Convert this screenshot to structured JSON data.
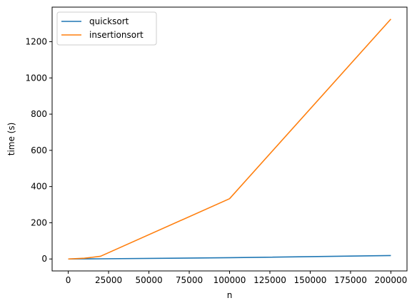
{
  "chart_data": {
    "type": "line",
    "title": "",
    "xlabel": "n",
    "ylabel": "time (s)",
    "xlim": [
      -10000,
      210000
    ],
    "ylim": [
      -66,
      1391
    ],
    "xticks": [
      0,
      25000,
      50000,
      75000,
      100000,
      125000,
      150000,
      175000,
      200000
    ],
    "yticks": [
      0,
      200,
      400,
      600,
      800,
      1000,
      1200
    ],
    "legend": "top-left",
    "grid": false,
    "series": [
      {
        "name": "quicksort",
        "color": "#1f77b4",
        "x": [
          0,
          10000,
          20000,
          100000,
          200000
        ],
        "y": [
          0,
          0.5,
          1,
          7,
          19
        ]
      },
      {
        "name": "insertionsort",
        "color": "#ff7f0e",
        "x": [
          0,
          10000,
          20000,
          100000,
          200000
        ],
        "y": [
          0,
          4,
          15,
          333,
          1325
        ]
      }
    ]
  }
}
